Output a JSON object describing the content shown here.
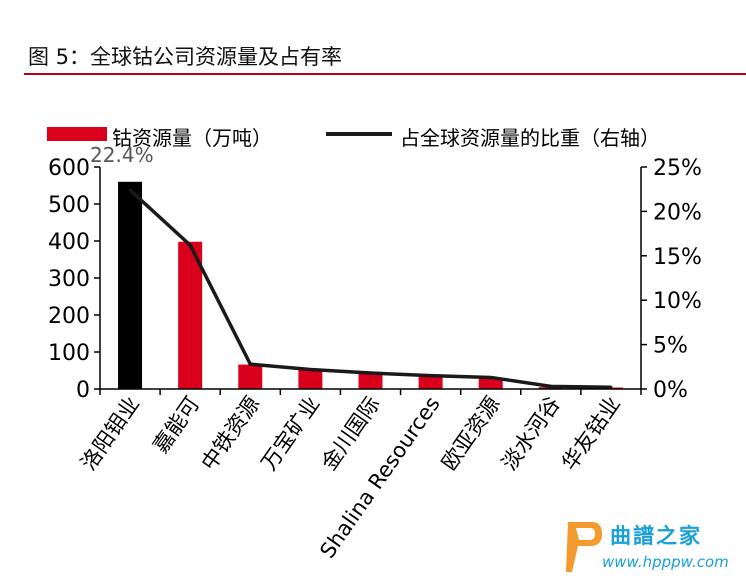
{
  "figure_title": "图 5：全球钴公司资源量及占有率",
  "watermark": {
    "name": "曲譜之家",
    "url": "www.hpppw.com"
  },
  "chart_data": {
    "type": "bar",
    "title": "",
    "categories": [
      "洛阳钼业",
      "嘉能可",
      "中铁资源",
      "万宝矿业",
      "金川国际",
      "Shalina Resources",
      "欧亚资源",
      "淡水河谷",
      "华友钴业"
    ],
    "series": [
      {
        "name": "钴资源量（万吨）",
        "type": "bar",
        "axis": "left",
        "values": [
          560,
          398,
          66,
          54,
          44,
          37,
          31,
          5,
          4
        ],
        "colors": [
          "#000000",
          "#d9001b",
          "#d9001b",
          "#d9001b",
          "#d9001b",
          "#d9001b",
          "#d9001b",
          "#d9001b",
          "#d9001b"
        ]
      },
      {
        "name": "占全球资源量的比重（右轴）",
        "type": "line",
        "axis": "right",
        "values": [
          22.4,
          16.2,
          2.8,
          2.2,
          1.8,
          1.5,
          1.3,
          0.3,
          0.2
        ],
        "color": "#1a1a1a"
      }
    ],
    "left_axis": {
      "min": 0,
      "max": 600,
      "ticks": [
        "0",
        "100",
        "200",
        "300",
        "400",
        "500",
        "600"
      ]
    },
    "right_axis": {
      "min": 0,
      "max": 25,
      "ticks": [
        "0%",
        "5%",
        "10%",
        "15%",
        "20%",
        "25%"
      ]
    },
    "data_labels": [
      {
        "index": 0,
        "text": "22.4%"
      }
    ],
    "legend_position": "top",
    "grid": false
  }
}
